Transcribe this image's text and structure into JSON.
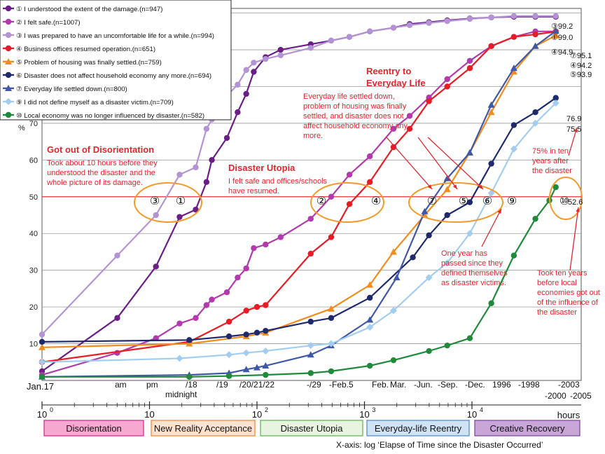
{
  "chart_data": {
    "type": "line",
    "y_unit": "%",
    "ylim": [
      0,
      100
    ],
    "y_ticks": [
      10,
      20,
      30,
      40,
      50,
      60,
      70
    ],
    "xlim_log_hours": [
      0,
      5
    ],
    "reference_line": {
      "value": 50
    },
    "x_category_labels": [
      "Jan.17",
      "am",
      "pm",
      "/18",
      "midnight",
      "/19",
      "/20/21/22",
      "-/29",
      "-Feb.5",
      "Feb.",
      "Mar.",
      "-Jun.",
      "-Sep.",
      "-Dec.",
      "1996",
      "-1998",
      "-2000",
      "-2003",
      "-2005"
    ],
    "log_axis": {
      "ticks": [
        {
          "base": "10",
          "exp": "0"
        },
        {
          "base": "10",
          "exp": ""
        },
        {
          "base": "10",
          "exp": "2"
        },
        {
          "base": "10",
          "exp": "3"
        },
        {
          "base": "10",
          "exp": "4"
        }
      ],
      "unit_label": "hours",
      "title": "X-axis: log ‘Elapse of Time since the Disaster Occurred’"
    },
    "phases": [
      {
        "label": "Disorientation",
        "color": "#f7a8d0",
        "border": "#d61f8c"
      },
      {
        "label": "New Reality Acceptance",
        "color": "#fde3cf",
        "border": "#f08030"
      },
      {
        "label": "Disaster Utopia",
        "color": "#e6f4e0",
        "border": "#5bb04e"
      },
      {
        "label": "Everyday-life Reentry",
        "color": "#cfe3f5",
        "border": "#4a86c8"
      },
      {
        "label": "Creative Recovery",
        "color": "#c8a6d8",
        "border": "#7a3f9a"
      }
    ],
    "series": [
      {
        "name": "① I understood the extent of the damage.(n=947)",
        "color": "#6a1e86",
        "marker": "circle",
        "x": [
          0,
          0.7,
          1.06,
          1.28,
          1.43,
          1.53,
          1.58,
          1.72,
          1.82,
          1.9,
          1.97,
          2.08,
          2.22,
          2.5,
          2.69,
          2.86,
          3.05,
          3.27,
          3.42,
          3.6,
          3.77,
          3.98,
          4.18,
          4.39,
          4.59,
          4.78
        ],
        "values": [
          2.5,
          17,
          31,
          44.5,
          46.5,
          54,
          60,
          66,
          73,
          78,
          84,
          88,
          90,
          91.5,
          92.5,
          93.5,
          95,
          96,
          97,
          97.5,
          98,
          98.5,
          98.8,
          99,
          99,
          99
        ]
      },
      {
        "name": "② I felt safe.(n=1007)",
        "color": "#b23aad",
        "marker": "circle",
        "x": [
          0,
          0.7,
          1.06,
          1.28,
          1.43,
          1.53,
          1.58,
          1.72,
          1.82,
          1.9,
          1.97,
          2.08,
          2.22,
          2.5,
          2.69,
          2.86,
          3.05,
          3.27,
          3.42,
          3.6,
          3.77,
          3.98,
          4.18,
          4.39,
          4.59,
          4.78
        ],
        "values": [
          1.5,
          7.5,
          11.5,
          15.5,
          17,
          20.5,
          22,
          24,
          28,
          30.5,
          36,
          37,
          39,
          44,
          50,
          56,
          61,
          68.5,
          72,
          77,
          82,
          87,
          91,
          93.5,
          95,
          95
        ]
      },
      {
        "name": "③ I was prepared to have an uncomfortable life for a while.(n=994)",
        "color": "#b493d5",
        "marker": "circle",
        "x": [
          0,
          0.7,
          1.06,
          1.28,
          1.43,
          1.53,
          1.58,
          1.72,
          1.82,
          1.9,
          1.97,
          2.08,
          2.22,
          2.5,
          2.69,
          2.86,
          3.05,
          3.27,
          3.42,
          3.6,
          3.77,
          3.98,
          4.18,
          4.39,
          4.59,
          4.78
        ],
        "values": [
          12.5,
          34,
          45,
          56,
          58,
          68.5,
          71,
          77.5,
          80.5,
          84.5,
          86.5,
          87.5,
          88.5,
          90.5,
          92.5,
          93.5,
          95,
          96,
          96.7,
          97.3,
          97.8,
          98.4,
          98.8,
          99.2,
          99.2,
          99.2
        ]
      },
      {
        "name": "④ Business offices resumed operation.(n=651)",
        "color": "#e81c24",
        "marker": "circle",
        "x": [
          0,
          1.37,
          1.74,
          1.9,
          2.0,
          2.08,
          2.5,
          2.69,
          2.86,
          3.05,
          3.27,
          3.42,
          3.6,
          3.77,
          3.98,
          4.18,
          4.39,
          4.59,
          4.78
        ],
        "values": [
          5,
          10.5,
          16,
          19,
          20,
          20.5,
          34.5,
          39,
          48,
          54,
          63.5,
          68.5,
          76,
          80,
          85,
          91,
          93.5,
          94.2,
          94.9
        ]
      },
      {
        "name": "⑤ Problem of housing was finally settled.(n=759)",
        "color": "#f18d1c",
        "marker": "triangle",
        "x": [
          0,
          1.37,
          1.9,
          2.08,
          2.69,
          3.05,
          3.27,
          3.56,
          3.77,
          3.98,
          4.18,
          4.39,
          4.59,
          4.78
        ],
        "values": [
          9,
          10,
          12,
          13,
          19.5,
          26,
          35,
          45,
          52,
          62,
          73,
          84,
          91,
          93.9
        ]
      },
      {
        "name": "⑥ Disaster does not affect household economy any more.(n=694)",
        "color": "#1e2a6b",
        "marker": "circle",
        "x": [
          0,
          1.37,
          1.74,
          1.9,
          2.0,
          2.08,
          2.5,
          2.69,
          3.05,
          3.45,
          3.6,
          3.77,
          3.98,
          4.18,
          4.39,
          4.59,
          4.78
        ],
        "values": [
          10.5,
          11,
          12,
          12.5,
          13,
          13.5,
          16,
          17,
          22.5,
          33.5,
          39.5,
          45,
          48.5,
          59,
          69.5,
          73,
          76.9
        ]
      },
      {
        "name": "⑦ Everyday life settled down.(n=800)",
        "color": "#4058a8",
        "marker": "triangle",
        "x": [
          0,
          1.37,
          1.74,
          1.9,
          2.0,
          2.08,
          2.5,
          2.69,
          3.05,
          3.3,
          3.56,
          3.77,
          3.98,
          4.18,
          4.39,
          4.59,
          4.78
        ],
        "values": [
          1,
          1.5,
          2,
          3,
          3.5,
          4,
          7,
          9.5,
          16.5,
          28,
          46,
          55,
          62,
          75,
          85,
          91,
          95.1
        ]
      },
      {
        "name": "⑨ I did not define myself as a disaster victim.(n=709)",
        "color": "#a3cdf0",
        "marker": "diamond",
        "x": [
          0,
          1.28,
          1.74,
          1.9,
          2.08,
          2.5,
          2.69,
          3.05,
          3.27,
          3.6,
          3.77,
          3.98,
          4.18,
          4.39,
          4.59,
          4.78
        ],
        "values": [
          5,
          6,
          7,
          7.5,
          8,
          9.5,
          10,
          14.5,
          19,
          28,
          32,
          40,
          51,
          63,
          70,
          75.5
        ]
      },
      {
        "name": "⑩ Local economy was no longer influenced by disaster.(n=582)",
        "color": "#1f8a3a",
        "marker": "circle",
        "x": [
          0,
          1.37,
          1.74,
          2.08,
          2.5,
          2.69,
          3.05,
          3.27,
          3.6,
          3.77,
          3.98,
          4.18,
          4.39,
          4.59,
          4.72,
          4.78
        ],
        "values": [
          1,
          1,
          1.2,
          1.5,
          2,
          2.5,
          4,
          5.5,
          8,
          9.5,
          11.5,
          21,
          34,
          44,
          49,
          52.6
        ]
      }
    ],
    "end_labels": [
      "③99.2",
      "①99.0",
      "④94.9",
      "⑦95.1",
      "④94.2",
      "⑤93.9",
      "76.9",
      "75.5",
      "52.6"
    ],
    "circle_markers": [
      "③",
      "①",
      "②",
      "④",
      "⑦",
      "⑤",
      "⑥",
      "⑨",
      "⑩"
    ],
    "annotations": [
      {
        "kind": "title",
        "text": "Got out of Disorientation"
      },
      {
        "kind": "note",
        "text": "Took about 10 hours before they understood the disaster and the whole picture of its damage."
      },
      {
        "kind": "title",
        "text": "Disaster Utopia"
      },
      {
        "kind": "note",
        "text": "I felt safe and offices/schools have resumed."
      },
      {
        "kind": "title",
        "text": "Reentry to Everyday Life"
      },
      {
        "kind": "note",
        "text": "Everyday life settled down, problem of housing was finally settled, and disaster does not affect household economy any more."
      },
      {
        "kind": "note",
        "text": "One year has passed since they defined themselves as disaster victims."
      },
      {
        "kind": "note",
        "text": "75% in ten years after the disaster"
      },
      {
        "kind": "note",
        "text": "Took ten years before local economies got out of the influence of the disaster"
      }
    ]
  }
}
